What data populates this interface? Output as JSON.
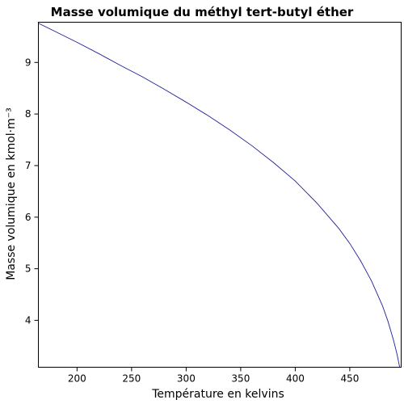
{
  "chart_data": {
    "type": "line",
    "title": "Masse volumique du méthyl tert-butyl éther",
    "xlabel": "Température en kelvins",
    "ylabel": "Masse volumique en kmol·m⁻³",
    "xlim": [
      164.55,
      497.1
    ],
    "ylim": [
      3.09,
      9.78
    ],
    "xticks": [
      "200",
      "250",
      "300",
      "350",
      "400",
      "450"
    ],
    "yticks": [
      "4",
      "5",
      "6",
      "7",
      "8",
      "9"
    ],
    "grid": false,
    "legend": "none",
    "line_color": "#1f1f9e",
    "series": [
      {
        "x": [
          164.55,
          180,
          200,
          220,
          240,
          260,
          280,
          300,
          320,
          340,
          360,
          380,
          400,
          420,
          440,
          450,
          460,
          470,
          480,
          485,
          490,
          493,
          495,
          496.5,
          497.1
        ],
        "y": [
          9.76,
          9.6,
          9.39,
          9.17,
          8.94,
          8.72,
          8.48,
          8.23,
          7.97,
          7.69,
          7.39,
          7.06,
          6.7,
          6.27,
          5.78,
          5.49,
          5.15,
          4.76,
          4.28,
          3.98,
          3.62,
          3.37,
          3.17,
          3.0,
          2.95
        ]
      }
    ]
  }
}
